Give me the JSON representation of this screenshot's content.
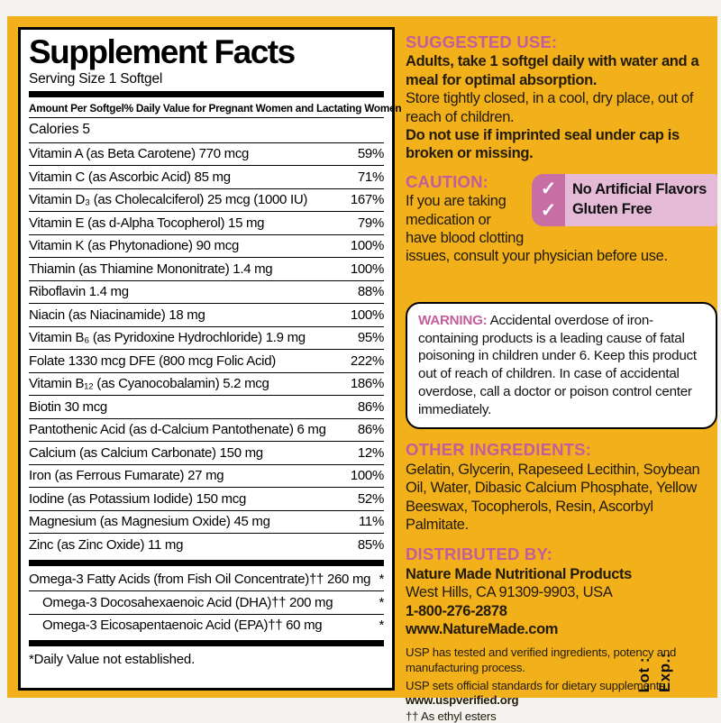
{
  "supplement_facts": {
    "title": "Supplement Facts",
    "serving_size": "Serving Size 1 Softgel",
    "header_left": "Amount Per Softgel",
    "header_right": "% Daily Value for Pregnant Women and Lactating Women",
    "calories": "Calories 5",
    "rows": [
      {
        "name": "Vitamin A (as Beta Carotene)  770 mcg",
        "dv": "59%"
      },
      {
        "name": "Vitamin C (as Ascorbic Acid)  85 mg",
        "dv": "71%"
      },
      {
        "name": "Vitamin D₃ (as Cholecalciferol)  25 mcg (1000 IU)",
        "dv": "167%"
      },
      {
        "name": "Vitamin E (as d-Alpha Tocopherol)  15 mg",
        "dv": "79%"
      },
      {
        "name": "Vitamin K (as Phytonadione)  90 mcg",
        "dv": "100%"
      },
      {
        "name": "Thiamin (as Thiamine Mononitrate)  1.4 mg",
        "dv": "100%"
      },
      {
        "name": "Riboflavin  1.4 mg",
        "dv": "88%"
      },
      {
        "name": "Niacin (as Niacinamide)  18 mg",
        "dv": "100%"
      },
      {
        "name": "Vitamin B₆ (as Pyridoxine Hydrochloride)  1.9 mg",
        "dv": "95%"
      },
      {
        "name": "Folate  1330 mcg DFE (800 mcg Folic Acid)",
        "dv": "222%"
      },
      {
        "name": "Vitamin B₁₂ (as Cyanocobalamin)  5.2 mcg",
        "dv": "186%"
      },
      {
        "name": "Biotin  30 mcg",
        "dv": "86%"
      },
      {
        "name": "Pantothenic Acid (as d-Calcium Pantothenate)  6 mg",
        "dv": "86%"
      },
      {
        "name": "Calcium (as Calcium Carbonate)  150 mg",
        "dv": "12%"
      },
      {
        "name": "Iron (as Ferrous Fumarate)  27 mg",
        "dv": "100%"
      },
      {
        "name": "Iodine (as Potassium Iodide)  150 mcg",
        "dv": "52%"
      },
      {
        "name": "Magnesium (as Magnesium Oxide)  45 mg",
        "dv": "11%"
      },
      {
        "name": "Zinc (as Zinc Oxide)  11 mg",
        "dv": "85%"
      },
      {
        "name": "Omega-3 Fatty Acids (from Fish Oil Concentrate)††  260 mg",
        "dv": "*",
        "bar_before": true
      },
      {
        "name": "Omega-3 Docosahexaenoic Acid (DHA)††  200 mg",
        "dv": "*",
        "indent": true
      },
      {
        "name": "Omega-3 Eicosapentaenoic Acid (EPA)††  60 mg",
        "dv": "*",
        "indent": true
      }
    ],
    "footnote": "*Daily Value not established."
  },
  "right_column": {
    "suggested_use": {
      "heading": "SUGGESTED USE:",
      "line1": "Adults, take 1 softgel daily with water and a meal for optimal absorption.",
      "line2": "Store tightly closed, in a cool, dry place, out of reach of children.",
      "line3": "Do not use if imprinted seal under cap is broken or missing."
    },
    "caution": {
      "heading": "CAUTION:",
      "body": "If you are taking medication or have blood clotting issues, consult your physician before use."
    },
    "badge": {
      "check_glyph": "✓",
      "items": [
        "No Artificial Flavors",
        "Gluten Free"
      ]
    },
    "warning": {
      "label": "WARNING:",
      "body": " Accidental overdose of iron-containing products is a leading cause of fatal poisoning in children under 6. Keep this product out of reach of children. In case of accidental overdose, call a doctor or poison control center immediately."
    },
    "other_ingredients": {
      "heading": "OTHER INGREDIENTS:",
      "body": "Gelatin, Glycerin, Rapeseed Lecithin, Soybean Oil, Water, Dibasic Calcium Phosphate, Yellow Beeswax, Tocopherols, Resin, Ascorbyl Palmitate."
    },
    "distributed_by": {
      "heading": "DISTRIBUTED BY:",
      "line1": "Nature Made Nutritional Products",
      "line2": "West Hills, CA 91309-9903, USA",
      "line3": "1-800-276-2878",
      "line4": "www.NatureMade.com"
    },
    "usp": {
      "note1": "USP has tested and verified ingredients, potency and manufacturing process.",
      "note2": "USP sets official standards for dietary supplements.",
      "url": "www.uspverified.org",
      "dagger_note": "†† As ethyl esters"
    },
    "lot_label": "Lot :",
    "exp_label": "Exp.:"
  },
  "colors": {
    "label_yellow": "#f2b11b",
    "pink_heading": "#c25e9c",
    "badge_dark_pink": "#c76ea5",
    "badge_light_pink": "#e4bad6"
  }
}
